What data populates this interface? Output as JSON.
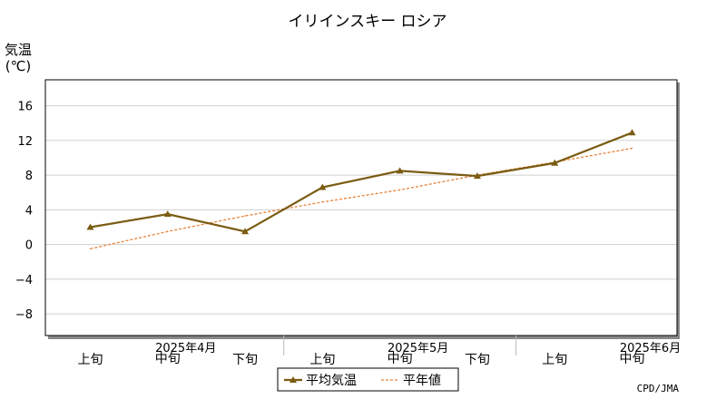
{
  "chart_data": {
    "type": "line",
    "title": "イリインスキー ロシア",
    "ylabel_line1": "気温",
    "ylabel_line2": "(℃)",
    "categories": [
      "上旬",
      "中旬",
      "下旬",
      "上旬",
      "中旬",
      "下旬",
      "上旬",
      "中旬"
    ],
    "month_labels": [
      "2025年4月",
      "2025年5月",
      "2025年6月"
    ],
    "yticks": [
      "16",
      "12",
      "8",
      "4",
      "0",
      "−4",
      "−8"
    ],
    "ylim": [
      -10.5,
      19
    ],
    "series": [
      {
        "name": "平均気温",
        "values": [
          2.0,
          3.5,
          1.5,
          6.6,
          8.5,
          7.9,
          9.4,
          12.9
        ],
        "color": "#7a5c12"
      },
      {
        "name": "平年値",
        "values": [
          -0.5,
          1.5,
          3.3,
          4.9,
          6.3,
          8.0,
          9.5,
          11.1
        ],
        "color": "#e8823a"
      }
    ],
    "grid": true,
    "legend": "bottom",
    "credit": "CPD/JMA"
  }
}
